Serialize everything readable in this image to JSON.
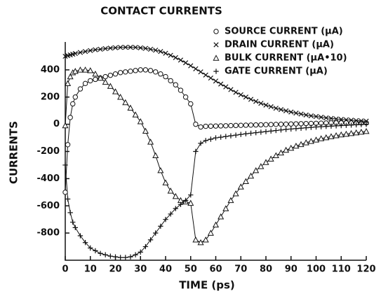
{
  "chart_data": {
    "type": "line",
    "title": "CONTACT CURRENTS",
    "x_label": "TIME (ps)",
    "y_label": "CURRENTS",
    "x": [
      0,
      1,
      2,
      3,
      4,
      6,
      8,
      10,
      12,
      14,
      16,
      18,
      20,
      22,
      24,
      26,
      28,
      30,
      32,
      34,
      36,
      38,
      40,
      42,
      44,
      46,
      48,
      50,
      52,
      54,
      56,
      58,
      60,
      62,
      64,
      66,
      68,
      70,
      72,
      74,
      76,
      78,
      80,
      82,
      84,
      86,
      88,
      90,
      92,
      94,
      96,
      98,
      100,
      102,
      104,
      106,
      108,
      110,
      112,
      114,
      116,
      118,
      120
    ],
    "series": [
      {
        "name": "SOURCE CURRENT (μA)",
        "marker": "circle",
        "color": "#111111",
        "values": [
          -500,
          -150,
          50,
          150,
          200,
          260,
          300,
          320,
          330,
          340,
          350,
          360,
          370,
          380,
          385,
          390,
          395,
          400,
          400,
          395,
          385,
          370,
          350,
          320,
          290,
          250,
          200,
          150,
          0,
          -20,
          -15,
          -14,
          -13,
          -12,
          -11,
          -10,
          -9,
          -8,
          -7,
          -6,
          -5,
          -4,
          -3,
          -2,
          -1,
          0,
          1,
          2,
          3,
          4,
          5,
          6,
          7,
          8,
          9,
          10,
          10,
          10,
          10,
          10,
          10,
          10,
          10
        ]
      },
      {
        "name": "DRAIN CURRENT (μA)",
        "marker": "x",
        "color": "#111111",
        "values": [
          500,
          505,
          510,
          515,
          520,
          528,
          535,
          542,
          548,
          552,
          556,
          560,
          563,
          565,
          566,
          566,
          565,
          562,
          558,
          552,
          545,
          535,
          522,
          507,
          490,
          472,
          452,
          430,
          408,
          385,
          362,
          340,
          318,
          296,
          275,
          255,
          235,
          217,
          200,
          183,
          168,
          154,
          141,
          129,
          118,
          108,
          99,
          90,
          82,
          75,
          68,
          62,
          57,
          52,
          47,
          43,
          39,
          36,
          33,
          30,
          27,
          25,
          23
        ]
      },
      {
        "name": "BULK CURRENT (μA•10)",
        "marker": "triangle",
        "color": "#111111",
        "values": [
          -10,
          300,
          350,
          380,
          390,
          400,
          400,
          395,
          370,
          340,
          310,
          280,
          240,
          200,
          160,
          120,
          70,
          20,
          -50,
          -130,
          -230,
          -340,
          -430,
          -490,
          -530,
          -560,
          -570,
          -580,
          -850,
          -870,
          -850,
          -800,
          -740,
          -680,
          -620,
          -560,
          -510,
          -460,
          -420,
          -380,
          -340,
          -310,
          -280,
          -255,
          -230,
          -210,
          -190,
          -175,
          -160,
          -148,
          -135,
          -125,
          -115,
          -105,
          -98,
          -90,
          -83,
          -77,
          -72,
          -67,
          -62,
          -57,
          -52
        ]
      },
      {
        "name": "GATE CURRENT (μA)",
        "marker": "plus",
        "color": "#111111",
        "values": [
          -300,
          -550,
          -650,
          -720,
          -760,
          -820,
          -870,
          -910,
          -930,
          -950,
          -960,
          -970,
          -975,
          -980,
          -980,
          -975,
          -960,
          -940,
          -900,
          -850,
          -800,
          -750,
          -700,
          -660,
          -620,
          -590,
          -560,
          -520,
          -200,
          -140,
          -120,
          -110,
          -100,
          -95,
          -90,
          -85,
          -80,
          -75,
          -70,
          -66,
          -62,
          -58,
          -54,
          -50,
          -46,
          -42,
          -38,
          -35,
          -32,
          -29,
          -26,
          -23,
          -20,
          -18,
          -16,
          -14,
          -12,
          -10,
          -8,
          -6,
          -4,
          -2,
          0
        ]
      }
    ],
    "xlim": [
      0,
      120
    ],
    "xticks": [
      0,
      10,
      20,
      30,
      40,
      50,
      60,
      70,
      80,
      90,
      100,
      110,
      120
    ],
    "ylim": [
      -1000,
      600
    ],
    "yticks": [
      -800,
      -600,
      -400,
      -200,
      0,
      200,
      400
    ],
    "legend": "upper right"
  }
}
